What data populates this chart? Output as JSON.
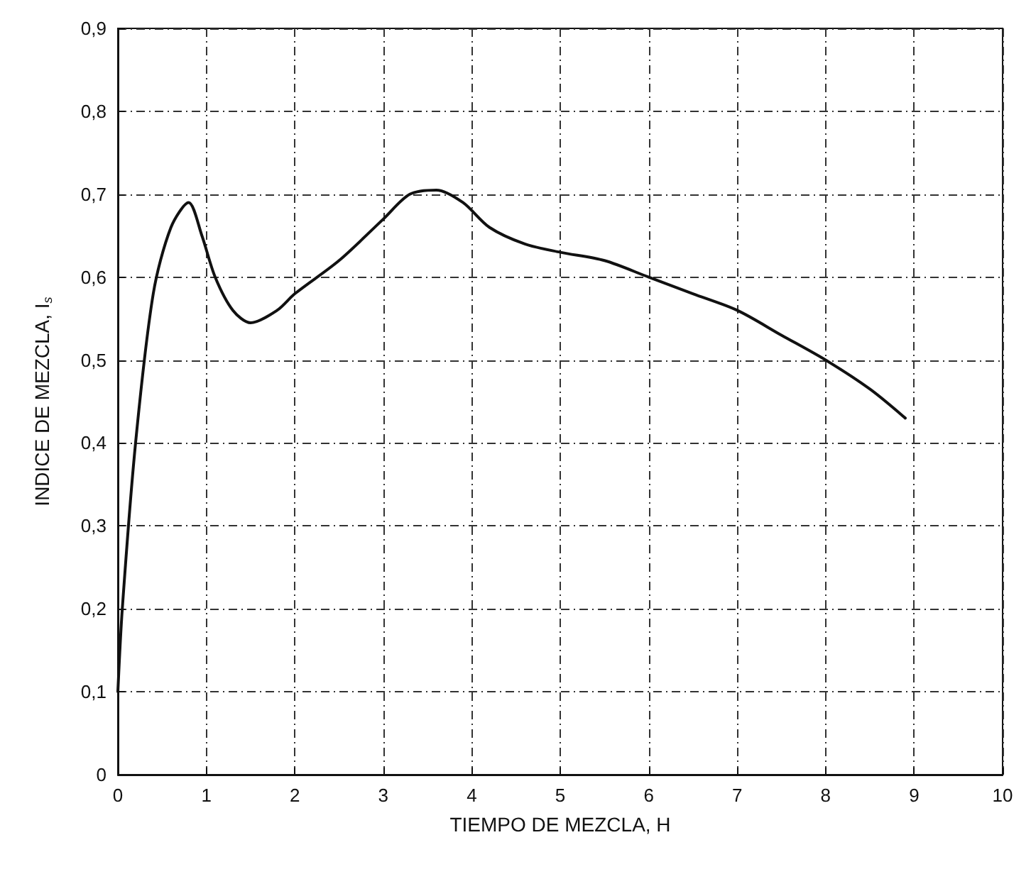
{
  "chart_data": {
    "type": "line",
    "xlabel": "TIEMPO DE MEZCLA, H",
    "ylabel": "INDICE DE MEZCLA, I$_{s}$",
    "x": [
      0,
      0.05,
      0.2,
      0.4,
      0.6,
      0.8,
      0.95,
      1.1,
      1.3,
      1.5,
      1.8,
      2,
      2.5,
      3,
      3.3,
      3.6,
      3.9,
      4.2,
      4.6,
      5,
      5.5,
      6,
      6.5,
      7,
      7.5,
      8,
      8.5,
      8.9
    ],
    "series": [
      {
        "color": "#111111",
        "values": [
          0.1,
          0.2,
          0.4,
          0.58,
          0.66,
          0.69,
          0.65,
          0.6,
          0.56,
          0.545,
          0.56,
          0.58,
          0.62,
          0.67,
          0.7,
          0.705,
          0.69,
          0.66,
          0.64,
          0.63,
          0.62,
          0.6,
          0.58,
          0.56,
          0.53,
          0.5,
          0.465,
          0.43
        ]
      }
    ],
    "xlim": [
      0,
      10
    ],
    "xticks": [
      0,
      1,
      2,
      3,
      4,
      5,
      6,
      7,
      8,
      9,
      10
    ],
    "ylim": [
      0,
      0.9
    ],
    "yticks": [
      0,
      {
        "value": 0.1,
        "label": "0,1"
      },
      {
        "value": 0.2,
        "label": "0,2"
      },
      {
        "value": 0.3,
        "label": "0,3"
      },
      {
        "value": 0.4,
        "label": "0,4"
      },
      {
        "value": 0.5,
        "label": "0,5"
      },
      {
        "value": 0.6,
        "label": "0,6"
      },
      {
        "value": 0.7,
        "label": "0,7"
      },
      {
        "value": 0.8,
        "label": "0,8"
      },
      {
        "value": 0.9,
        "label": "0,9"
      }
    ],
    "grid": true,
    "marker": "none",
    "line_style": "solid"
  }
}
